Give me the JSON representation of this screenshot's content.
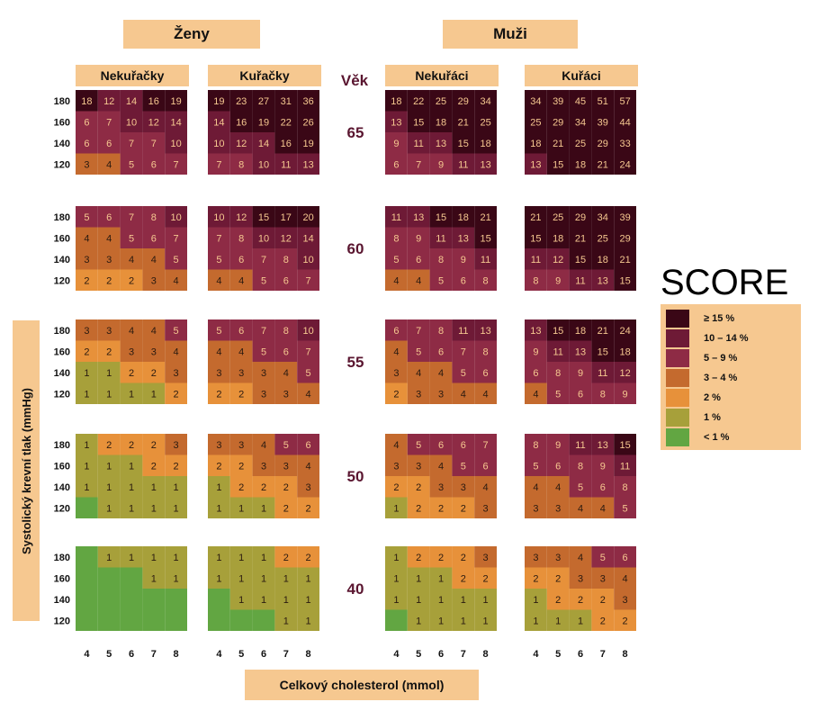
{
  "chart_data": {
    "type": "heatmap",
    "title": "SCORE",
    "gender_labels": [
      "Ženy",
      "Muži"
    ],
    "group_labels": [
      "Nekuřačky",
      "Kuřačky",
      "Nekuřáci",
      "Kuřáci"
    ],
    "age_title": "Věk",
    "ages": [
      "65",
      "60",
      "55",
      "50",
      "40"
    ],
    "sbp_ticks": [
      "180",
      "160",
      "140",
      "120"
    ],
    "chol_ticks": [
      "4",
      "5",
      "6",
      "7",
      "8"
    ],
    "ylabel": "Systolický krevní tlak (mmHg)",
    "xlabel": "Celkový cholesterol (mmol)",
    "legend": [
      {
        "label": "≥ 15 %",
        "color": "#3a0716"
      },
      {
        "label": "10 – 14 %",
        "color": "#6e1a36"
      },
      {
        "label": "5 – 9 %",
        "color": "#8e2b45"
      },
      {
        "label": "3 – 4 %",
        "color": "#c46a2e"
      },
      {
        "label": "2 %",
        "color": "#e7913a"
      },
      {
        "label": "1 %",
        "color": "#a7a03a"
      },
      {
        "label": "< 1 %",
        "color": "#62a642"
      }
    ],
    "tables": {
      "Nekuřačky": {
        "65": [
          [
            18,
            12,
            14,
            16,
            19
          ],
          [
            6,
            7,
            10,
            12,
            14
          ],
          [
            6,
            6,
            7,
            7,
            10
          ],
          [
            3,
            4,
            5,
            6,
            7
          ]
        ],
        "60": [
          [
            5,
            6,
            7,
            8,
            10
          ],
          [
            4,
            4,
            5,
            6,
            7
          ],
          [
            3,
            3,
            4,
            4,
            5
          ],
          [
            2,
            2,
            2,
            3,
            4
          ]
        ],
        "55": [
          [
            3,
            3,
            4,
            4,
            5
          ],
          [
            2,
            2,
            3,
            3,
            4
          ],
          [
            1,
            1,
            2,
            2,
            3
          ],
          [
            1,
            1,
            1,
            1,
            2
          ]
        ],
        "50": [
          [
            1,
            2,
            2,
            2,
            3
          ],
          [
            1,
            1,
            1,
            2,
            2
          ],
          [
            1,
            1,
            1,
            1,
            1
          ],
          [
            0,
            1,
            1,
            1,
            1
          ]
        ],
        "40": [
          [
            0,
            1,
            1,
            1,
            1
          ],
          [
            0,
            0,
            0,
            1,
            1
          ],
          [
            0,
            0,
            0,
            0,
            0
          ],
          [
            0,
            0,
            0,
            0,
            0
          ]
        ]
      },
      "Kuřačky": {
        "65": [
          [
            19,
            23,
            27,
            31,
            36
          ],
          [
            14,
            16,
            19,
            22,
            26
          ],
          [
            10,
            12,
            14,
            16,
            19
          ],
          [
            7,
            8,
            10,
            11,
            13
          ]
        ],
        "60": [
          [
            10,
            12,
            15,
            17,
            20
          ],
          [
            7,
            8,
            10,
            12,
            14
          ],
          [
            5,
            6,
            7,
            8,
            10
          ],
          [
            4,
            4,
            5,
            6,
            7
          ]
        ],
        "55": [
          [
            5,
            6,
            7,
            8,
            10
          ],
          [
            4,
            4,
            5,
            6,
            7
          ],
          [
            3,
            3,
            3,
            4,
            5
          ],
          [
            2,
            2,
            3,
            3,
            4
          ]
        ],
        "50": [
          [
            3,
            3,
            4,
            5,
            6
          ],
          [
            2,
            2,
            3,
            3,
            4
          ],
          [
            1,
            2,
            2,
            2,
            3
          ],
          [
            1,
            1,
            1,
            2,
            2
          ]
        ],
        "40": [
          [
            1,
            1,
            1,
            2,
            2
          ],
          [
            1,
            1,
            1,
            1,
            1
          ],
          [
            0,
            1,
            1,
            1,
            1
          ],
          [
            0,
            0,
            0,
            1,
            1
          ]
        ]
      },
      "Nekuřáci": {
        "65": [
          [
            18,
            22,
            25,
            29,
            34
          ],
          [
            13,
            15,
            18,
            21,
            25
          ],
          [
            9,
            11,
            13,
            15,
            18
          ],
          [
            6,
            7,
            9,
            11,
            13
          ]
        ],
        "60": [
          [
            11,
            13,
            15,
            18,
            21
          ],
          [
            8,
            9,
            11,
            13,
            15
          ],
          [
            5,
            6,
            8,
            9,
            11
          ],
          [
            4,
            4,
            5,
            6,
            8
          ]
        ],
        "55": [
          [
            6,
            7,
            8,
            11,
            13
          ],
          [
            4,
            5,
            6,
            7,
            8
          ],
          [
            3,
            4,
            4,
            5,
            6
          ],
          [
            2,
            3,
            3,
            4,
            4
          ]
        ],
        "50": [
          [
            4,
            5,
            6,
            6,
            7
          ],
          [
            3,
            3,
            4,
            5,
            6
          ],
          [
            2,
            2,
            3,
            3,
            4
          ],
          [
            1,
            2,
            2,
            2,
            3
          ]
        ],
        "40": [
          [
            1,
            2,
            2,
            2,
            3
          ],
          [
            1,
            1,
            1,
            2,
            2
          ],
          [
            1,
            1,
            1,
            1,
            1
          ],
          [
            0,
            1,
            1,
            1,
            1
          ]
        ]
      },
      "Kuřáci": {
        "65": [
          [
            34,
            39,
            45,
            51,
            57
          ],
          [
            25,
            29,
            34,
            39,
            44
          ],
          [
            18,
            21,
            25,
            29,
            33
          ],
          [
            13,
            15,
            18,
            21,
            24
          ]
        ],
        "60": [
          [
            21,
            25,
            29,
            34,
            39
          ],
          [
            15,
            18,
            21,
            25,
            29
          ],
          [
            11,
            12,
            15,
            18,
            21
          ],
          [
            8,
            9,
            11,
            13,
            15
          ]
        ],
        "55": [
          [
            13,
            15,
            18,
            21,
            24
          ],
          [
            9,
            11,
            13,
            15,
            18
          ],
          [
            6,
            8,
            9,
            11,
            12
          ],
          [
            4,
            5,
            6,
            8,
            9
          ]
        ],
        "50": [
          [
            8,
            9,
            11,
            13,
            15
          ],
          [
            5,
            6,
            8,
            9,
            11
          ],
          [
            4,
            4,
            5,
            6,
            8
          ],
          [
            3,
            3,
            4,
            4,
            5
          ]
        ],
        "40": [
          [
            3,
            3,
            4,
            5,
            6
          ],
          [
            2,
            2,
            3,
            3,
            4
          ],
          [
            1,
            2,
            2,
            2,
            3
          ],
          [
            1,
            1,
            1,
            2,
            2
          ]
        ]
      }
    }
  }
}
